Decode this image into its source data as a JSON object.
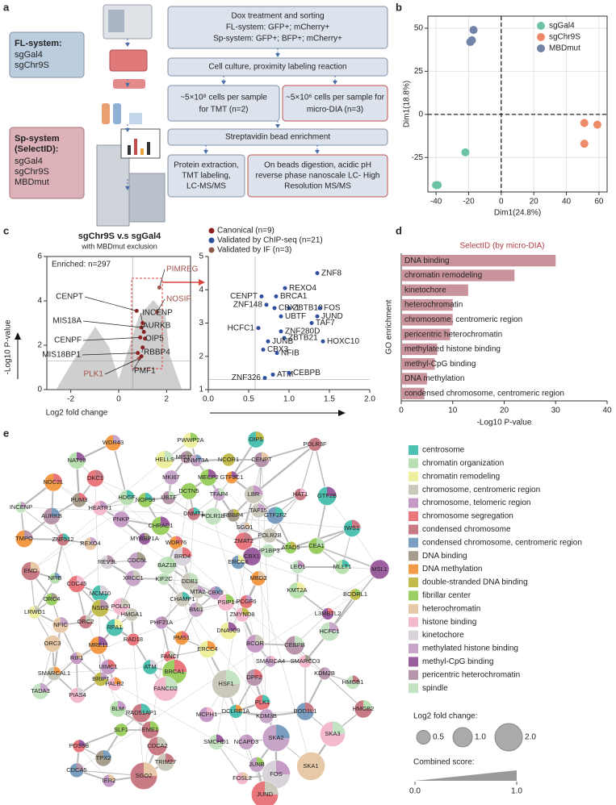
{
  "panel_labels": [
    "a",
    "b",
    "c",
    "d",
    "e"
  ],
  "flow": {
    "fl_title": "FL-system:",
    "fl_items": [
      "sgGal4",
      "sgChr9S"
    ],
    "sp_title": [
      "Sp-system",
      "(SelectID):"
    ],
    "sp_items": [
      "sgGal4",
      "sgChr9S",
      "MBDmut"
    ],
    "steps": [
      [
        "Dox treatment and sorting",
        "FL-system: GFP+; mCherry+",
        "Sp-system: GFP+; BFP+; mCherry+"
      ],
      [
        "Cell culture, proximity labeling reaction"
      ]
    ],
    "split1": [
      [
        "~5×10⁸ cells per sample",
        "for TMT (n=2)"
      ],
      [
        "~5×10⁶ cells per sample for",
        "micro-DIA (n=3)"
      ]
    ],
    "step3": "Streptavidin bead enrichment",
    "split2": [
      [
        "Protein extraction,",
        "TMT labeling,",
        "LC-MS/MS"
      ],
      [
        "On beads digestion, acidic pH",
        "reverse phase nanoscale LC- High",
        "Resolution MS/MS"
      ]
    ]
  },
  "chart_data": [
    {
      "type": "scatter",
      "xlabel": "Dim1(24.8%)",
      "ylabel": "Dim1(18.8%)",
      "xlim": [
        -45,
        65
      ],
      "ylim": [
        -45,
        57
      ],
      "xticks": [
        -40,
        -20,
        0,
        20,
        40,
        60
      ],
      "yticks": [
        -25,
        0,
        25,
        50
      ],
      "grid": true,
      "zero_lines": true,
      "legend": "upper right",
      "series": [
        {
          "name": "sgGal4",
          "color": "#6cc3a8",
          "x": [
            -22,
            -40,
            -39
          ],
          "y": [
            -22,
            -41,
            -41
          ]
        },
        {
          "name": "sgChr9S",
          "color": "#ee8a6a",
          "x": [
            51,
            59,
            51
          ],
          "y": [
            -5,
            -6,
            -17
          ]
        },
        {
          "name": "MBDmut",
          "color": "#7383a8",
          "x": [
            -17,
            -19,
            -18
          ],
          "y": [
            49,
            42,
            43
          ]
        }
      ]
    },
    {
      "type": "volcano",
      "title": "sgChr9S v.s sgGal4",
      "subtitle": "with MBDmut exclusion",
      "annotation": "Enriched: n=297",
      "xlabel": "Log2 fold change",
      "ylabel": "-Log10 P-value",
      "xlim": [
        -3,
        3
      ],
      "ylim": [
        0,
        6
      ],
      "xticks": [
        -2,
        0,
        2
      ],
      "yticks": [
        0,
        2,
        4,
        6
      ],
      "threshold_y": 1.3,
      "threshold_x": 0.58,
      "labels": [
        "CENPT",
        "MIS18A",
        "CENPF",
        "MIS18BP1",
        "PLK1",
        "PIMREG",
        "NOSIP",
        "INCENP",
        "AURKB",
        "OIP5",
        "RBBP4",
        "PMF1"
      ],
      "x": [
        0.75,
        0.95,
        0.9,
        0.8,
        0.85,
        1.7,
        1.6,
        1.0,
        1.05,
        1.1,
        1.0,
        0.95
      ],
      "y": [
        3.55,
        2.8,
        2.35,
        1.65,
        1.4,
        4.6,
        3.5,
        3.0,
        2.6,
        2.3,
        1.9,
        1.5
      ],
      "colors": [
        "#8b2323",
        "#8b2323",
        "#8b2323",
        "#8b2323",
        "#a0524a",
        "#a0524a",
        "#a0524a",
        "#8b2323",
        "#8b2323",
        "#8b2323",
        "#8b2323",
        "#8b2323"
      ]
    },
    {
      "type": "scatter-labeled",
      "xlim": [
        0,
        2
      ],
      "ylim": [
        1,
        5
      ],
      "xticks": [
        {
          "value": 0,
          "label": "0.0"
        },
        0.5,
        {
          "value": 1,
          "label": "1.0"
        },
        1.5,
        {
          "value": 2,
          "label": "2.0"
        }
      ],
      "yticks": [
        1,
        2,
        3,
        4,
        5
      ],
      "threshold_y": 1.3,
      "threshold_x": 0.58,
      "color": "#2d4f9e",
      "labels": [
        "ZNF8",
        "REXO4",
        "BRCA1",
        "CENPT",
        "ZBTB10",
        "ZNF148",
        "CBX1",
        "FOS",
        "UBTF",
        "JUND",
        "TAF7",
        "HCFC1",
        "ZNF280D",
        "ZBTB21",
        "HOXC10",
        "JUNB",
        "CBX3",
        "NFIB",
        "ZNF326",
        "ATM",
        "CEBPB"
      ],
      "x": [
        1.35,
        0.95,
        0.84,
        0.66,
        1.0,
        0.72,
        0.82,
        1.38,
        0.9,
        1.35,
        1.28,
        0.62,
        0.9,
        0.94,
        1.42,
        0.74,
        0.68,
        0.85,
        0.7,
        0.8,
        1.0
      ],
      "y": [
        4.5,
        4.05,
        3.8,
        3.8,
        3.45,
        3.55,
        3.45,
        3.45,
        3.2,
        3.2,
        3.0,
        2.85,
        2.75,
        2.55,
        2.45,
        2.45,
        2.2,
        2.1,
        1.35,
        1.45,
        1.5
      ],
      "legend": [
        {
          "name": "Canonical (n=9)",
          "color": "#8b2323"
        },
        {
          "name": "Validated by ChIP-seq (n=21)",
          "color": "#2d4f9e"
        },
        {
          "name": "Validated by IF (n=3)",
          "color": "#8b5a4a"
        }
      ]
    },
    {
      "type": "barh",
      "title": "SelectID (by micro-DIA)",
      "ylabel": "GO enrichment",
      "xlabel": "-Log10 P-value",
      "color": "#c9939c",
      "xlim": [
        0,
        40
      ],
      "xticks": [
        0,
        10,
        20,
        30,
        40
      ],
      "categories": [
        "DNA binding",
        "chromatin remodeling",
        "kinetochore",
        "heterochromatin",
        "chromosome, centromeric region",
        "pericentric heterochromatin",
        "methylated histone binding",
        "methyl-CpG binding",
        "DNA methylation",
        "condensed chromosome, centromeric region"
      ],
      "values": [
        30,
        22,
        13,
        10,
        10,
        9.5,
        7,
        6.5,
        5,
        4.5
      ]
    }
  ],
  "network": {
    "nodes": [
      "PWWP2A",
      "OIP5",
      "POLR3F",
      "WDR43",
      "MIS18A",
      "CENPT",
      "HELLS",
      "DNMT3A",
      "NCOR1",
      "NAT10",
      "MKI67",
      "MECP2",
      "GTF3C1",
      "DKC1",
      "NOC2L",
      "DCTN5",
      "UBTF",
      "TFAP4",
      "LBR",
      "HAT1",
      "GTF2B",
      "HDGF",
      "NOP58",
      "PUM3",
      "HEATR1",
      "INCENP",
      "AURKB",
      "DNMT1",
      "POLR1B",
      "RBBP4",
      "TAF15",
      "GTF2F2",
      "PNKP",
      "CHRAC1",
      "SGO1",
      "IWS1",
      "TMPO",
      "ZNF512",
      "REXO4",
      "MYBBP1A",
      "WDR76",
      "ZMAT2",
      "POLR2B",
      "HP1BP3",
      "ATAD5",
      "CEA1",
      "BRD4",
      "BAZ1B",
      "CDC5L",
      "REV3L",
      "CBX1",
      "ERCC6",
      "MLLT1",
      "MSL1",
      "EMD",
      "XRCC1",
      "KIF2C",
      "DDB1",
      "MBD3",
      "LEO1",
      "NFIB",
      "CDC45",
      "MCM10",
      "MTA2",
      "CHAMP1",
      "CBX3",
      "PSIP1",
      "PCGF6",
      "KMT2A",
      "BCORL1",
      "ORC4",
      "LRWD1",
      "NSD2",
      "POLD1",
      "HMGA1",
      "BMI1",
      "ZMYND8",
      "L3MBTL2",
      "ORC2",
      "NFIC",
      "RPA1",
      "PHF21A",
      "DNAJC9",
      "HCFC1",
      "ORC3",
      "MRE11",
      "RAD18",
      "PMS1",
      "FANCI",
      "ERCC4",
      "BCOR",
      "CEBPB",
      "SMARCAL1",
      "RIF1",
      "UIMC1",
      "BRIP1",
      "ATM",
      "BRCA1",
      "SMARCA4",
      "SMARCD3",
      "KDM2B",
      "PALB2",
      "PIAS4",
      "FANCD2",
      "HSF1",
      "DPF2",
      "HMGB1",
      "TADA3",
      "BLM",
      "RAD51AP1",
      "MCPH1",
      "DCLRE1A",
      "PLK1",
      "KDM3B",
      "BOD1L1",
      "HMGB2",
      "SLF1",
      "EME1",
      "PDS5B",
      "TPX2",
      "CDCA2",
      "SMCHD1",
      "NCAPD3",
      "SKA2",
      "SKA3",
      "CDCA5",
      "TRIM27",
      "JUNB",
      "SKA1",
      "SGO2",
      "IER2",
      "FOSL2",
      "FOS",
      "JUND"
    ],
    "categories": [
      {
        "name": "centrosome",
        "color": "#4fc1b0"
      },
      {
        "name": "chromatin organization",
        "color": "#b9e0b0"
      },
      {
        "name": "chromatin remodeling",
        "color": "#eef0a0"
      },
      {
        "name": "chromosome, centromeric region",
        "color": "#cbc9bb"
      },
      {
        "name": "chromosome, telomeric region",
        "color": "#c59ac4"
      },
      {
        "name": "chromosome segregation",
        "color": "#e9757d"
      },
      {
        "name": "condensed chromosome",
        "color": "#c87a85"
      },
      {
        "name": "condensed chromosome, centromeric region",
        "color": "#7a9ec0"
      },
      {
        "name": "DNA binding",
        "color": "#a79d8d"
      },
      {
        "name": "DNA methylation",
        "color": "#f29a45"
      },
      {
        "name": "double-stranded DNA binding",
        "color": "#c2bb4e"
      },
      {
        "name": "fibrillar center",
        "color": "#9ccf62"
      },
      {
        "name": "heterochromatin",
        "color": "#e7c9a8"
      },
      {
        "name": "histone binding",
        "color": "#f4b8cf"
      },
      {
        "name": "kinetochore",
        "color": "#d8d2da"
      },
      {
        "name": "methylated histone binding",
        "color": "#c6a5c8"
      },
      {
        "name": "methyl-CpG binding",
        "color": "#9b5fa0"
      },
      {
        "name": "pericentric heterochromatin",
        "color": "#b795ab"
      },
      {
        "name": "spindle",
        "color": "#c4e3c3"
      }
    ],
    "size_legend": {
      "title": "Log2 fold change:",
      "values": [
        0.5,
        {
          "value": 1,
          "label": "1.0"
        },
        {
          "value": 2,
          "label": "2.0"
        }
      ]
    },
    "score_legend": {
      "title": "Combined score:",
      "ticks": [
        {
          "value": 0,
          "label": "0.0"
        },
        {
          "value": 1,
          "label": "1.0"
        }
      ]
    }
  }
}
